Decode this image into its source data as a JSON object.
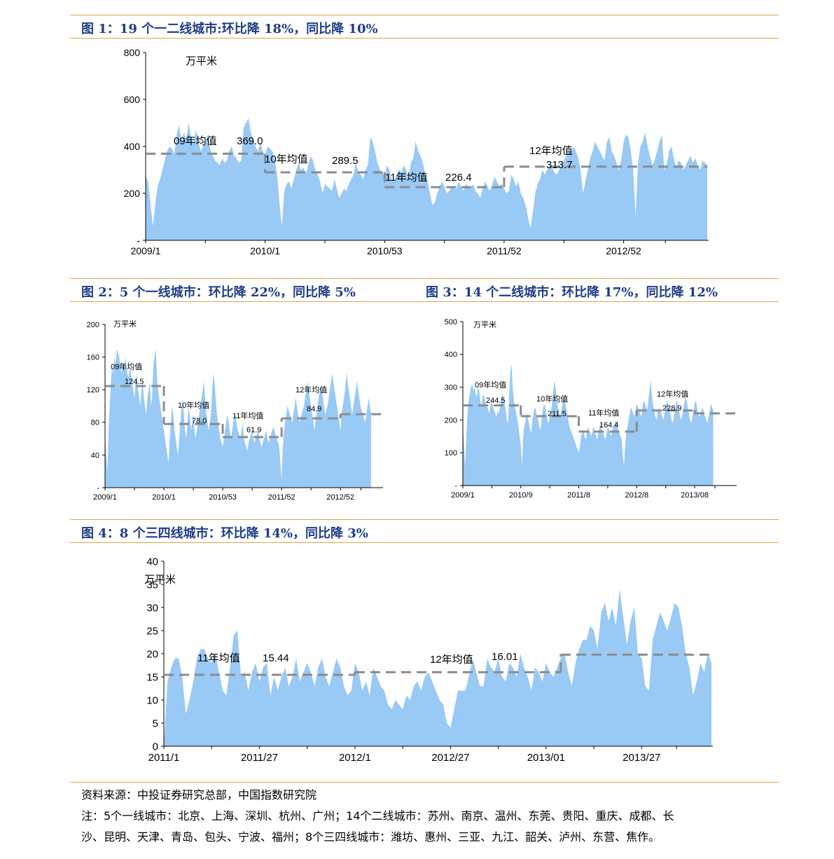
{
  "titles": {
    "fig1": "图 1：19 个一二线城市:环比降 18%，同比降 10%",
    "fig2": "图 2：5 个一线城市：环比降 22%，同比降 5%",
    "fig3": "图 3：14 个二线城市：环比降 17%，同比降 12%",
    "fig4": "图 4：8 个三四线城市：环比降 14%，同比降 3%"
  },
  "notes": {
    "source": "资料来源：中投证券研究总部，中国指数研究院",
    "note_line1": "注：5个一线城市：北京、上海、深圳、杭州、广州；14个二线城市：苏州、南京、温州、东莞、贵阳、重庆、成都、长",
    "note_line2": "沙、昆明、天津、青岛、包头、宁波、福州；8个三四线城市：潍坊、惠州、三亚、九江、韶关、泸州、东营、焦作。"
  },
  "colors": {
    "area": "#99c9f5",
    "avg_line": "#8c8c8c",
    "title": "#1f3c88",
    "rule": "#e8a24a"
  },
  "chart_data": [
    {
      "id": "fig1",
      "type": "area",
      "ylabel": "万平米",
      "ylim": [
        0,
        800
      ],
      "yticks": [
        {
          "v": 0,
          "label": "-"
        },
        {
          "v": 200,
          "label": "200"
        },
        {
          "v": 400,
          "label": "400"
        },
        {
          "v": 600,
          "label": "600"
        },
        {
          "v": 800,
          "label": "800"
        }
      ],
      "xticks": [
        "2009/1",
        "2010/1",
        "2010/53",
        "2011/52",
        "2012/52"
      ],
      "x_count": 236,
      "xtick_index": [
        0,
        50,
        100,
        150,
        200
      ],
      "values": [
        280,
        250,
        160,
        60,
        150,
        230,
        260,
        300,
        340,
        380,
        400,
        390,
        370,
        450,
        490,
        420,
        460,
        430,
        500,
        440,
        410,
        470,
        430,
        380,
        400,
        420,
        450,
        390,
        360,
        340,
        330,
        320,
        350,
        330,
        340,
        380,
        400,
        360,
        350,
        330,
        340,
        480,
        500,
        520,
        460,
        430,
        400,
        380,
        420,
        380,
        360,
        400,
        390,
        380,
        340,
        280,
        160,
        60,
        210,
        240,
        250,
        220,
        260,
        300,
        330,
        300,
        310,
        280,
        320,
        360,
        340,
        300,
        280,
        250,
        200,
        240,
        230,
        220,
        210,
        260,
        220,
        180,
        200,
        220,
        210,
        240,
        260,
        280,
        330,
        290,
        280,
        260,
        300,
        320,
        440,
        420,
        380,
        330,
        300,
        290,
        270,
        320,
        300,
        260,
        250,
        280,
        300,
        290,
        320,
        300,
        260,
        330,
        350,
        420,
        380,
        360,
        330,
        280,
        250,
        200,
        150,
        160,
        200,
        230,
        250,
        230,
        200,
        210,
        230,
        220,
        220,
        250,
        230,
        210,
        240,
        230,
        220,
        240,
        210,
        200,
        180,
        220,
        250,
        230,
        210,
        240,
        270,
        250,
        230,
        240,
        220,
        200,
        210,
        280,
        260,
        230,
        250,
        200,
        180,
        150,
        100,
        50,
        120,
        200,
        240,
        260,
        300,
        280,
        300,
        320,
        310,
        290,
        280,
        300,
        320,
        340,
        360,
        370,
        380,
        400,
        380,
        350,
        300,
        200,
        250,
        300,
        350,
        380,
        420,
        400,
        380,
        360,
        340,
        420,
        440,
        380,
        360,
        330,
        300,
        340,
        420,
        450,
        440,
        380,
        300,
        100,
        320,
        400,
        420,
        460,
        400,
        360,
        320,
        340,
        380,
        420,
        450,
        300,
        320,
        380,
        400,
        350,
        310,
        340,
        330,
        300,
        320,
        340,
        360,
        330,
        350,
        320,
        300,
        340,
        330,
        320
      ],
      "averages": [
        {
          "label": "09年均值",
          "value": 369.0,
          "value_label": "369.0",
          "from": 0,
          "to": 50
        },
        {
          "label": "10年均值",
          "value": 289.5,
          "value_label": "289.5",
          "from": 50,
          "to": 100
        },
        {
          "label": "11年均值",
          "value": 226.4,
          "value_label": "226.4",
          "from": 100,
          "to": 150
        },
        {
          "label": "12年均值",
          "value": 313.7,
          "value_label": "313.7",
          "from": 150,
          "to": 235
        }
      ]
    },
    {
      "id": "fig2",
      "type": "area",
      "ylabel": "万平米",
      "ylim": [
        0,
        200
      ],
      "yticks": [
        {
          "v": 0,
          "label": "-"
        },
        {
          "v": 40,
          "label": "40"
        },
        {
          "v": 80,
          "label": "80"
        },
        {
          "v": 120,
          "label": "120"
        },
        {
          "v": 160,
          "label": "160"
        },
        {
          "v": 200,
          "label": "200"
        }
      ],
      "xticks": [
        "2009/1",
        "2010/1",
        "2010/53",
        "2011/52",
        "2012/52"
      ],
      "x_count": 236,
      "xtick_index": [
        0,
        50,
        100,
        150,
        200
      ],
      "values": [
        60,
        40,
        20,
        70,
        100,
        130,
        150,
        140,
        160,
        150,
        170,
        165,
        160,
        150,
        140,
        155,
        145,
        160,
        150,
        140,
        135,
        150,
        140,
        130,
        120,
        110,
        130,
        140,
        120,
        110,
        100,
        120,
        130,
        110,
        100,
        90,
        110,
        120,
        130,
        100,
        110,
        150,
        160,
        170,
        140,
        120,
        110,
        100,
        90,
        80,
        70,
        60,
        50,
        40,
        30,
        60,
        80,
        100,
        90,
        70,
        60,
        50,
        40,
        60,
        80,
        100,
        110,
        90,
        70,
        60,
        80,
        100,
        90,
        70,
        80,
        90,
        70,
        60,
        70,
        80,
        90,
        100,
        110,
        120,
        130,
        110,
        90,
        80,
        70,
        80,
        90,
        120,
        140,
        130,
        110,
        90,
        80,
        70,
        60,
        55,
        50,
        60,
        70,
        80,
        90,
        80,
        70,
        60,
        70,
        80,
        90,
        85,
        75,
        70,
        65,
        60,
        70,
        80,
        60,
        55,
        50,
        45,
        55,
        60,
        65,
        70,
        60,
        55,
        60,
        65,
        70,
        60,
        55,
        50,
        55,
        60,
        65,
        70,
        60,
        55,
        60,
        65,
        70,
        75,
        70,
        65,
        60,
        55,
        50,
        30,
        10,
        50,
        70,
        80,
        90,
        100,
        95,
        90,
        85,
        80,
        90,
        100,
        110,
        100,
        90,
        80,
        85,
        90,
        95,
        100,
        110,
        120,
        130,
        120,
        110,
        100,
        90,
        80,
        70,
        85,
        95,
        105,
        115,
        125,
        120,
        110,
        100,
        90,
        95,
        100,
        110,
        120,
        130,
        140,
        130,
        120,
        110,
        100,
        90,
        80,
        70,
        90,
        100,
        110,
        120,
        140,
        130,
        120,
        110,
        100,
        90,
        100,
        110,
        120,
        130,
        120,
        110,
        100,
        95,
        90,
        85,
        80,
        90,
        100,
        110,
        100,
        90
      ],
      "averages": [
        {
          "label": "09年均值",
          "value": 124.5,
          "value_label": "124.5",
          "from": 0,
          "to": 50
        },
        {
          "label": "10年均值",
          "value": 78.0,
          "value_label": "78.0",
          "from": 50,
          "to": 100
        },
        {
          "label": "11年均值",
          "value": 61.9,
          "value_label": "61.9",
          "from": 100,
          "to": 150
        },
        {
          "label": "12年均值",
          "value": 84.9,
          "value_label": "84.9",
          "from": 150,
          "to": 200
        },
        {
          "label": "",
          "value": 90,
          "value_label": "",
          "from": 200,
          "to": 235
        }
      ]
    },
    {
      "id": "fig3",
      "type": "area",
      "ylabel": "万平米",
      "ylim": [
        0,
        500
      ],
      "yticks": [
        {
          "v": 0,
          "label": "-"
        },
        {
          "v": 100,
          "label": "100"
        },
        {
          "v": 200,
          "label": "200"
        },
        {
          "v": 300,
          "label": "300"
        },
        {
          "v": 400,
          "label": "400"
        },
        {
          "v": 500,
          "label": "500"
        }
      ],
      "xticks": [
        "2009/1",
        "2010/9",
        "2011/8",
        "2012/8",
        "2013/08"
      ],
      "x_count": 236,
      "xtick_index": [
        0,
        50,
        100,
        150,
        200
      ],
      "values": [
        180,
        120,
        60,
        150,
        220,
        260,
        280,
        300,
        310,
        290,
        300,
        280,
        270,
        300,
        290,
        260,
        240,
        270,
        280,
        260,
        250,
        240,
        230,
        220,
        250,
        260,
        240,
        230,
        220,
        210,
        230,
        220,
        240,
        260,
        280,
        270,
        250,
        230,
        200,
        190,
        280,
        350,
        370,
        300,
        260,
        240,
        220,
        200,
        180,
        150,
        120,
        60,
        150,
        180,
        200,
        220,
        210,
        190,
        170,
        160,
        200,
        220,
        240,
        230,
        210,
        200,
        180,
        170,
        210,
        230,
        250,
        240,
        220,
        200,
        190,
        210,
        230,
        250,
        290,
        320,
        300,
        260,
        240,
        220,
        210,
        230,
        250,
        270,
        260,
        240,
        220,
        200,
        180,
        170,
        160,
        150,
        140,
        130,
        120,
        110,
        100,
        120,
        150,
        160,
        170,
        150,
        140,
        160,
        180,
        170,
        160,
        150,
        170,
        180,
        160,
        150,
        140,
        160,
        180,
        190,
        170,
        160,
        150,
        140,
        160,
        180,
        170,
        160,
        150,
        170,
        180,
        190,
        200,
        180,
        170,
        160,
        150,
        140,
        90,
        60,
        120,
        160,
        180,
        200,
        220,
        240,
        230,
        220,
        210,
        230,
        250,
        240,
        230,
        220,
        210,
        240,
        260,
        250,
        240,
        230,
        260,
        290,
        320,
        280,
        250,
        230,
        210,
        200,
        220,
        240,
        230,
        220,
        210,
        200,
        220,
        240,
        260,
        250,
        230,
        220,
        200,
        190,
        210,
        230,
        250,
        260,
        240,
        220,
        200,
        210,
        230,
        250,
        270,
        260,
        240,
        220,
        200,
        190,
        210,
        230,
        250,
        260,
        240,
        220,
        210,
        220,
        230,
        240,
        220,
        210,
        200,
        190,
        210,
        230,
        250,
        240,
        230
      ],
      "averages": [
        {
          "label": "09年均值",
          "value": 244.5,
          "value_label": "244.5",
          "from": 0,
          "to": 50
        },
        {
          "label": "10年均值",
          "value": 211.5,
          "value_label": "211.5",
          "from": 50,
          "to": 100
        },
        {
          "label": "11年均值",
          "value": 164.4,
          "value_label": "164.4",
          "from": 100,
          "to": 150
        },
        {
          "label": "12年均值",
          "value": 228.9,
          "value_label": "228.9",
          "from": 150,
          "to": 200
        },
        {
          "label": "",
          "value": 220,
          "value_label": "",
          "from": 200,
          "to": 235
        }
      ]
    },
    {
      "id": "fig4",
      "type": "area",
      "ylabel": "万平米",
      "ylim": [
        0,
        40
      ],
      "yticks": [
        {
          "v": 0,
          "label": "0"
        },
        {
          "v": 5,
          "label": "5"
        },
        {
          "v": 10,
          "label": "10"
        },
        {
          "v": 15,
          "label": "15"
        },
        {
          "v": 20,
          "label": "20"
        },
        {
          "v": 25,
          "label": "25"
        },
        {
          "v": 30,
          "label": "30"
        },
        {
          "v": 35,
          "label": "35"
        },
        {
          "v": 40,
          "label": "40"
        }
      ],
      "xticks": [
        "2011/1",
        "2011/27",
        "2012/1",
        "2012/27",
        "2013/01",
        "2013/27"
      ],
      "x_count": 150,
      "xtick_index": [
        0,
        26,
        52,
        78,
        104,
        130
      ],
      "values": [
        0,
        14,
        17,
        19,
        19,
        15,
        7,
        10,
        14,
        19,
        21,
        21,
        19,
        18,
        20,
        16,
        12,
        11,
        17,
        24,
        25,
        15,
        16,
        12,
        16,
        18,
        14,
        17,
        18,
        11,
        15,
        12,
        15,
        17,
        13,
        15,
        19,
        14,
        16,
        18,
        16,
        13,
        17,
        19,
        15,
        13,
        16,
        19,
        17,
        13,
        11,
        12,
        18,
        16,
        12,
        14,
        11,
        17,
        15,
        13,
        12,
        9,
        8,
        10,
        9,
        8,
        11,
        10,
        13,
        14,
        12,
        15,
        16,
        14,
        12,
        10,
        9,
        5,
        4,
        8,
        12,
        12,
        12,
        15,
        19,
        16,
        13,
        13,
        19,
        17,
        16,
        19,
        15,
        14,
        18,
        17,
        15,
        20,
        17,
        15,
        12,
        17,
        16,
        14,
        18,
        16,
        15,
        17,
        19,
        20,
        16,
        13,
        18,
        21,
        23,
        23,
        26,
        25,
        21,
        29,
        31,
        27,
        30,
        26,
        34,
        28,
        22,
        27,
        30,
        20,
        19,
        13,
        12,
        23,
        26,
        29,
        27,
        25,
        28,
        31,
        30,
        26,
        20,
        17,
        11,
        14,
        18,
        16,
        20,
        18
      ],
      "averages": [
        {
          "label": "11年均值",
          "value": 15.44,
          "value_label": "15.44",
          "from": 0,
          "to": 52
        },
        {
          "label": "12年均值",
          "value": 16.01,
          "value_label": "16.01",
          "from": 52,
          "to": 108
        },
        {
          "label": "",
          "value": 19.8,
          "value_label": "",
          "from": 108,
          "to": 149
        }
      ]
    }
  ]
}
